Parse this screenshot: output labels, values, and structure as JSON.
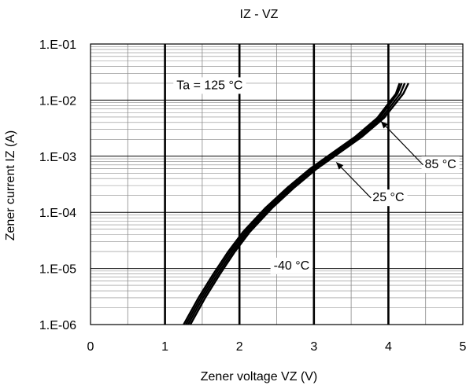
{
  "chart_data": {
    "type": "line",
    "title": "IZ - VZ",
    "xlabel": "Zener voltage VZ (V)",
    "ylabel": "Zener current IZ (A)",
    "xlim": [
      0,
      5
    ],
    "ylim": [
      1e-06,
      0.1
    ],
    "yscale": "log",
    "x_ticks": [
      "0",
      "1",
      "2",
      "3",
      "4",
      "5"
    ],
    "y_ticks": [
      "1.E-06",
      "1.E-05",
      "1.E-04",
      "1.E-03",
      "1.E-02",
      "1.E-01"
    ],
    "grid": true,
    "series": [
      {
        "name": "Ta = 125 °C",
        "x": [
          1.25,
          1.45,
          1.65,
          1.85,
          2.05,
          2.35,
          2.65,
          2.95,
          3.25,
          3.55,
          3.85,
          4.1,
          4.15
        ],
        "y": [
          1e-06,
          3e-06,
          8e-06,
          2e-05,
          4.5e-05,
          0.00012,
          0.00028,
          0.0006,
          0.00115,
          0.0022,
          0.0048,
          0.013,
          0.02
        ]
      },
      {
        "name": "85 °C",
        "x": [
          1.28,
          1.48,
          1.68,
          1.88,
          2.08,
          2.38,
          2.68,
          2.98,
          3.28,
          3.58,
          3.88,
          4.12,
          4.18
        ],
        "y": [
          1e-06,
          3e-06,
          8e-06,
          2e-05,
          4.5e-05,
          0.00012,
          0.00028,
          0.0006,
          0.00115,
          0.0022,
          0.0048,
          0.013,
          0.02
        ]
      },
      {
        "name": "25 °C",
        "x": [
          1.31,
          1.51,
          1.71,
          1.91,
          2.11,
          2.41,
          2.71,
          3.01,
          3.31,
          3.61,
          3.91,
          4.16,
          4.22
        ],
        "y": [
          1e-06,
          3e-06,
          8e-06,
          2e-05,
          4.5e-05,
          0.00012,
          0.00028,
          0.0006,
          0.00115,
          0.0022,
          0.0048,
          0.013,
          0.02
        ]
      },
      {
        "name": "-40 °C",
        "x": [
          1.34,
          1.54,
          1.74,
          1.94,
          2.14,
          2.44,
          2.74,
          3.04,
          3.34,
          3.64,
          3.94,
          4.2,
          4.27
        ],
        "y": [
          1e-06,
          3e-06,
          8e-06,
          2e-05,
          4.5e-05,
          0.00012,
          0.00028,
          0.0006,
          0.00115,
          0.0022,
          0.0048,
          0.013,
          0.02
        ]
      }
    ],
    "annotations": [
      {
        "text": "Ta = 125 °C",
        "x": 1.6,
        "y": 0.018
      },
      {
        "text": "85 °C",
        "x": 4.7,
        "y": 0.0007
      },
      {
        "text": "25 °C",
        "x": 4.0,
        "y": 0.00018
      },
      {
        "text": "-40 °C",
        "x": 2.7,
        "y": 1.1e-05
      }
    ]
  }
}
